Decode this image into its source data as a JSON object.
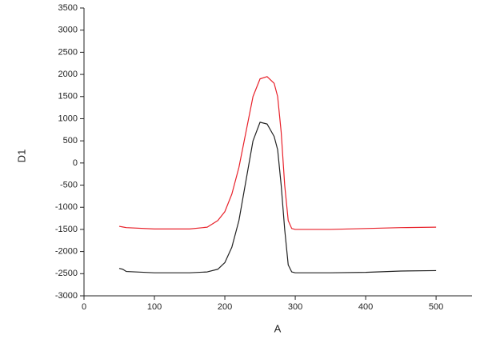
{
  "chart_data": {
    "type": "line",
    "x_label": "A",
    "y_label": "D1",
    "x": [
      50,
      55,
      60,
      100,
      150,
      175,
      190,
      200,
      210,
      220,
      230,
      240,
      250,
      260,
      270,
      275,
      280,
      285,
      290,
      295,
      300,
      350,
      400,
      450,
      500
    ],
    "series": [
      {
        "color": "#e8212a",
        "values": [
          -1430,
          -1445,
          -1460,
          -1490,
          -1490,
          -1450,
          -1300,
          -1100,
          -700,
          -100,
          700,
          1500,
          1900,
          1950,
          1800,
          1500,
          700,
          -500,
          -1300,
          -1480,
          -1500,
          -1500,
          -1480,
          -1460,
          -1450
        ]
      },
      {
        "color": "#222222",
        "values": [
          -2380,
          -2400,
          -2450,
          -2480,
          -2480,
          -2460,
          -2400,
          -2250,
          -1900,
          -1300,
          -400,
          500,
          920,
          880,
          600,
          300,
          -500,
          -1500,
          -2300,
          -2460,
          -2480,
          -2480,
          -2470,
          -2440,
          -2430
        ]
      }
    ],
    "xlim": [
      0,
      551
    ],
    "ylim": [
      -3000,
      3500
    ],
    "xticks": [
      0,
      100,
      200,
      300,
      400,
      500
    ],
    "yticks": [
      -3000,
      -2500,
      -2000,
      -1500,
      -1000,
      -500,
      0,
      500,
      1000,
      1500,
      2000,
      2500,
      3000,
      3500
    ],
    "grid": false
  }
}
